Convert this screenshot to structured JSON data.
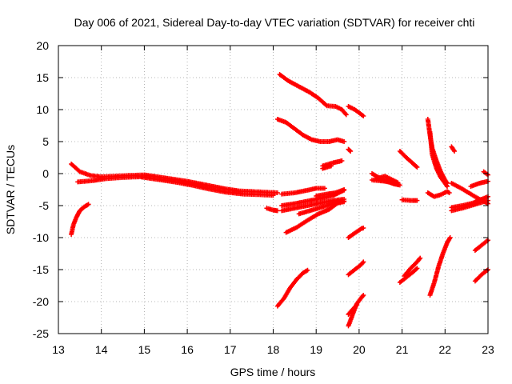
{
  "chart_data": {
    "type": "scatter",
    "title": "Day 006 of 2021, Sidereal Day-to-day VTEC variation (SDTVAR) for receiver chti",
    "xlabel": "GPS time / hours",
    "ylabel": "SDTVAR / TECUs",
    "xlim": [
      13,
      23
    ],
    "ylim": [
      -25,
      20
    ],
    "grid": true,
    "marker": "+",
    "color": "#ff0000",
    "x_ticks": [
      13,
      14,
      15,
      16,
      17,
      18,
      19,
      20,
      21,
      22,
      23
    ],
    "y_ticks": [
      -25,
      -20,
      -15,
      -10,
      -5,
      0,
      5,
      10,
      15,
      20
    ],
    "series": [
      {
        "name": "band_main_upper",
        "points": [
          [
            13.3,
            1.5
          ],
          [
            13.5,
            0.3
          ],
          [
            13.75,
            -0.3
          ],
          [
            14.0,
            -0.5
          ],
          [
            14.3,
            -0.4
          ],
          [
            14.6,
            -0.3
          ],
          [
            15.0,
            -0.2
          ],
          [
            15.3,
            -0.5
          ],
          [
            15.6,
            -0.8
          ],
          [
            16.0,
            -1.2
          ],
          [
            16.3,
            -1.6
          ],
          [
            16.6,
            -2.0
          ],
          [
            16.9,
            -2.4
          ],
          [
            17.2,
            -2.7
          ],
          [
            17.5,
            -2.8
          ],
          [
            17.8,
            -2.9
          ],
          [
            18.1,
            -3.0
          ]
        ]
      },
      {
        "name": "band_main_lower",
        "points": [
          [
            13.45,
            -1.3
          ],
          [
            13.8,
            -1.1
          ],
          [
            14.1,
            -0.8
          ],
          [
            14.5,
            -0.6
          ],
          [
            14.9,
            -0.5
          ],
          [
            15.3,
            -0.9
          ],
          [
            15.7,
            -1.3
          ],
          [
            16.1,
            -1.8
          ],
          [
            16.5,
            -2.4
          ],
          [
            16.9,
            -2.9
          ],
          [
            17.3,
            -3.2
          ],
          [
            17.7,
            -3.3
          ],
          [
            18.0,
            -3.4
          ]
        ]
      },
      {
        "name": "early_rise",
        "points": [
          [
            13.3,
            -9.5
          ],
          [
            13.35,
            -8.0
          ],
          [
            13.42,
            -6.8
          ],
          [
            13.5,
            -5.8
          ],
          [
            13.6,
            -5.2
          ],
          [
            13.7,
            -4.8
          ]
        ]
      },
      {
        "name": "pre18_dip",
        "points": [
          [
            17.85,
            -5.4
          ],
          [
            18.0,
            -5.7
          ],
          [
            18.1,
            -5.8
          ]
        ]
      },
      {
        "name": "a18_top",
        "points": [
          [
            18.15,
            15.5
          ],
          [
            18.35,
            14.5
          ],
          [
            18.6,
            13.6
          ],
          [
            18.85,
            12.7
          ],
          [
            19.05,
            11.8
          ],
          [
            19.25,
            10.6
          ],
          [
            19.45,
            10.5
          ],
          [
            19.6,
            10.0
          ],
          [
            19.7,
            9.2
          ]
        ]
      },
      {
        "name": "a18_mid",
        "points": [
          [
            18.1,
            8.5
          ],
          [
            18.3,
            8.0
          ],
          [
            18.5,
            7.0
          ],
          [
            18.7,
            6.0
          ],
          [
            18.9,
            5.3
          ],
          [
            19.1,
            5.0
          ],
          [
            19.3,
            5.0
          ],
          [
            19.5,
            5.3
          ],
          [
            19.65,
            5.0
          ]
        ]
      },
      {
        "name": "a18_low1",
        "points": [
          [
            18.2,
            -3.2
          ],
          [
            18.5,
            -3.0
          ],
          [
            18.8,
            -2.6
          ],
          [
            19.0,
            -2.3
          ],
          [
            19.2,
            -2.3
          ]
        ]
      },
      {
        "name": "a18_low2",
        "points": [
          [
            18.2,
            -5.0
          ],
          [
            18.5,
            -4.7
          ],
          [
            18.8,
            -4.3
          ],
          [
            19.1,
            -3.9
          ],
          [
            19.4,
            -3.4
          ],
          [
            19.65,
            -2.6
          ]
        ]
      },
      {
        "name": "a18_low3",
        "points": [
          [
            18.2,
            -5.8
          ],
          [
            18.5,
            -5.4
          ],
          [
            18.8,
            -5.0
          ],
          [
            19.1,
            -4.6
          ],
          [
            19.4,
            -4.2
          ],
          [
            19.65,
            -4.0
          ]
        ]
      },
      {
        "name": "a18_low4",
        "points": [
          [
            18.6,
            -6.3
          ],
          [
            18.9,
            -5.7
          ],
          [
            19.2,
            -5.1
          ],
          [
            19.5,
            -4.5
          ],
          [
            19.65,
            -4.3
          ]
        ]
      },
      {
        "name": "a18_low5",
        "points": [
          [
            18.3,
            -9.2
          ],
          [
            18.55,
            -8.4
          ],
          [
            18.8,
            -7.3
          ],
          [
            19.05,
            -6.3
          ],
          [
            19.3,
            -5.6
          ],
          [
            19.5,
            -4.6
          ],
          [
            19.65,
            -4.4
          ]
        ]
      },
      {
        "name": "a18_low6",
        "points": [
          [
            19.0,
            -3.5
          ],
          [
            19.25,
            -3.2
          ],
          [
            19.45,
            -3.0
          ],
          [
            19.65,
            -2.5
          ]
        ]
      },
      {
        "name": "a18_pos2",
        "points": [
          [
            19.15,
            1.2
          ],
          [
            19.4,
            1.7
          ],
          [
            19.6,
            2.0
          ]
        ]
      },
      {
        "name": "a18_pos2b",
        "points": [
          [
            19.15,
            0.8
          ],
          [
            19.35,
            1.2
          ]
        ]
      },
      {
        "name": "a18_deep",
        "points": [
          [
            18.1,
            -20.7
          ],
          [
            18.25,
            -19.5
          ],
          [
            18.4,
            -17.8
          ],
          [
            18.55,
            -16.5
          ],
          [
            18.7,
            -15.5
          ],
          [
            18.8,
            -15.1
          ]
        ]
      },
      {
        "name": "a20_top",
        "points": [
          [
            19.75,
            10.5
          ],
          [
            19.9,
            10.0
          ],
          [
            20.0,
            9.5
          ],
          [
            20.1,
            9.0
          ]
        ]
      },
      {
        "name": "a20_small_pos",
        "points": [
          [
            19.75,
            3.8
          ],
          [
            19.8,
            3.5
          ]
        ]
      },
      {
        "name": "a20_deep1",
        "points": [
          [
            19.75,
            -23.8
          ],
          [
            19.85,
            -22.0
          ],
          [
            19.95,
            -20.3
          ],
          [
            20.05,
            -19.4
          ],
          [
            20.1,
            -19.0
          ]
        ]
      },
      {
        "name": "a20_deep2",
        "points": [
          [
            19.75,
            -22.0
          ],
          [
            19.85,
            -21.2
          ],
          [
            19.95,
            -20.5
          ]
        ]
      },
      {
        "name": "a20_m15",
        "points": [
          [
            19.75,
            -15.8
          ],
          [
            19.9,
            -15.0
          ],
          [
            20.05,
            -14.2
          ],
          [
            20.1,
            -13.8
          ]
        ]
      },
      {
        "name": "a20_m10",
        "points": [
          [
            19.75,
            -10.0
          ],
          [
            19.9,
            -9.3
          ],
          [
            20.05,
            -8.6
          ],
          [
            20.1,
            -8.5
          ]
        ]
      },
      {
        "name": "a20_cluster",
        "points": [
          [
            20.3,
            0.0
          ],
          [
            20.45,
            -0.6
          ],
          [
            20.6,
            -1.0
          ],
          [
            20.8,
            -1.6
          ],
          [
            20.95,
            -1.8
          ],
          [
            20.4,
            -0.8
          ],
          [
            20.6,
            -0.4
          ],
          [
            20.9,
            -1.4
          ],
          [
            20.3,
            -1.0
          ]
        ]
      },
      {
        "name": "a21_pos",
        "points": [
          [
            20.95,
            3.5
          ],
          [
            21.1,
            2.5
          ],
          [
            21.25,
            1.6
          ],
          [
            21.35,
            1.0
          ]
        ]
      },
      {
        "name": "a21_m4",
        "points": [
          [
            21.0,
            -4.1
          ],
          [
            21.2,
            -4.2
          ],
          [
            21.35,
            -4.2
          ]
        ]
      },
      {
        "name": "a21_m16a",
        "points": [
          [
            20.95,
            -17.0
          ],
          [
            21.1,
            -16.2
          ],
          [
            21.25,
            -15.4
          ],
          [
            21.35,
            -14.8
          ]
        ]
      },
      {
        "name": "a21_m16b",
        "points": [
          [
            21.05,
            -16.0
          ],
          [
            21.2,
            -14.8
          ],
          [
            21.35,
            -13.8
          ],
          [
            21.42,
            -13.2
          ]
        ]
      },
      {
        "name": "a22_hump1",
        "points": [
          [
            21.6,
            8.5
          ],
          [
            21.65,
            6.0
          ],
          [
            21.7,
            4.0
          ],
          [
            21.8,
            2.0
          ],
          [
            21.9,
            0.3
          ],
          [
            22.0,
            -1.0
          ],
          [
            22.05,
            -1.5
          ]
        ]
      },
      {
        "name": "a22_hump2",
        "points": [
          [
            21.65,
            6.5
          ],
          [
            21.7,
            3.0
          ],
          [
            21.8,
            0.8
          ],
          [
            21.9,
            -0.6
          ],
          [
            22.0,
            -1.5
          ],
          [
            22.05,
            -2.0
          ]
        ]
      },
      {
        "name": "a22_low",
        "points": [
          [
            21.6,
            -3.0
          ],
          [
            21.75,
            -3.6
          ],
          [
            21.9,
            -3.3
          ],
          [
            22.05,
            -2.8
          ],
          [
            22.1,
            -3.0
          ]
        ]
      },
      {
        "name": "a22_deep",
        "points": [
          [
            21.65,
            -19.0
          ],
          [
            21.75,
            -17.0
          ],
          [
            21.85,
            -14.5
          ],
          [
            21.95,
            -12.5
          ],
          [
            22.05,
            -10.8
          ],
          [
            22.12,
            -10.0
          ]
        ]
      },
      {
        "name": "a22_pos4",
        "points": [
          [
            22.15,
            4.2
          ],
          [
            22.22,
            3.5
          ]
        ]
      },
      {
        "name": "a22_slope",
        "points": [
          [
            22.15,
            -1.5
          ],
          [
            22.35,
            -2.2
          ],
          [
            22.55,
            -3.0
          ],
          [
            22.75,
            -3.8
          ],
          [
            22.95,
            -4.5
          ],
          [
            23.0,
            -4.7
          ]
        ]
      },
      {
        "name": "a22_bunch1",
        "points": [
          [
            22.15,
            -5.3
          ],
          [
            22.4,
            -5.0
          ],
          [
            22.65,
            -4.6
          ],
          [
            22.85,
            -4.0
          ],
          [
            23.0,
            -3.6
          ]
        ]
      },
      {
        "name": "a22_bunch2",
        "points": [
          [
            22.15,
            -5.8
          ],
          [
            22.4,
            -5.4
          ],
          [
            22.65,
            -4.9
          ],
          [
            22.85,
            -4.5
          ],
          [
            23.0,
            -4.2
          ]
        ]
      },
      {
        "name": "a22_right_up",
        "points": [
          [
            22.6,
            -2.0
          ],
          [
            22.8,
            -1.5
          ],
          [
            23.0,
            -1.2
          ]
        ]
      },
      {
        "name": "a22_right_pos",
        "points": [
          [
            22.9,
            0.3
          ],
          [
            23.0,
            -0.2
          ]
        ]
      },
      {
        "name": "a22_m11",
        "points": [
          [
            22.7,
            -12.0
          ],
          [
            22.85,
            -11.2
          ],
          [
            23.0,
            -10.4
          ]
        ]
      },
      {
        "name": "a22_m16",
        "points": [
          [
            22.7,
            -16.8
          ],
          [
            22.85,
            -15.8
          ],
          [
            23.0,
            -15.0
          ]
        ]
      }
    ]
  }
}
